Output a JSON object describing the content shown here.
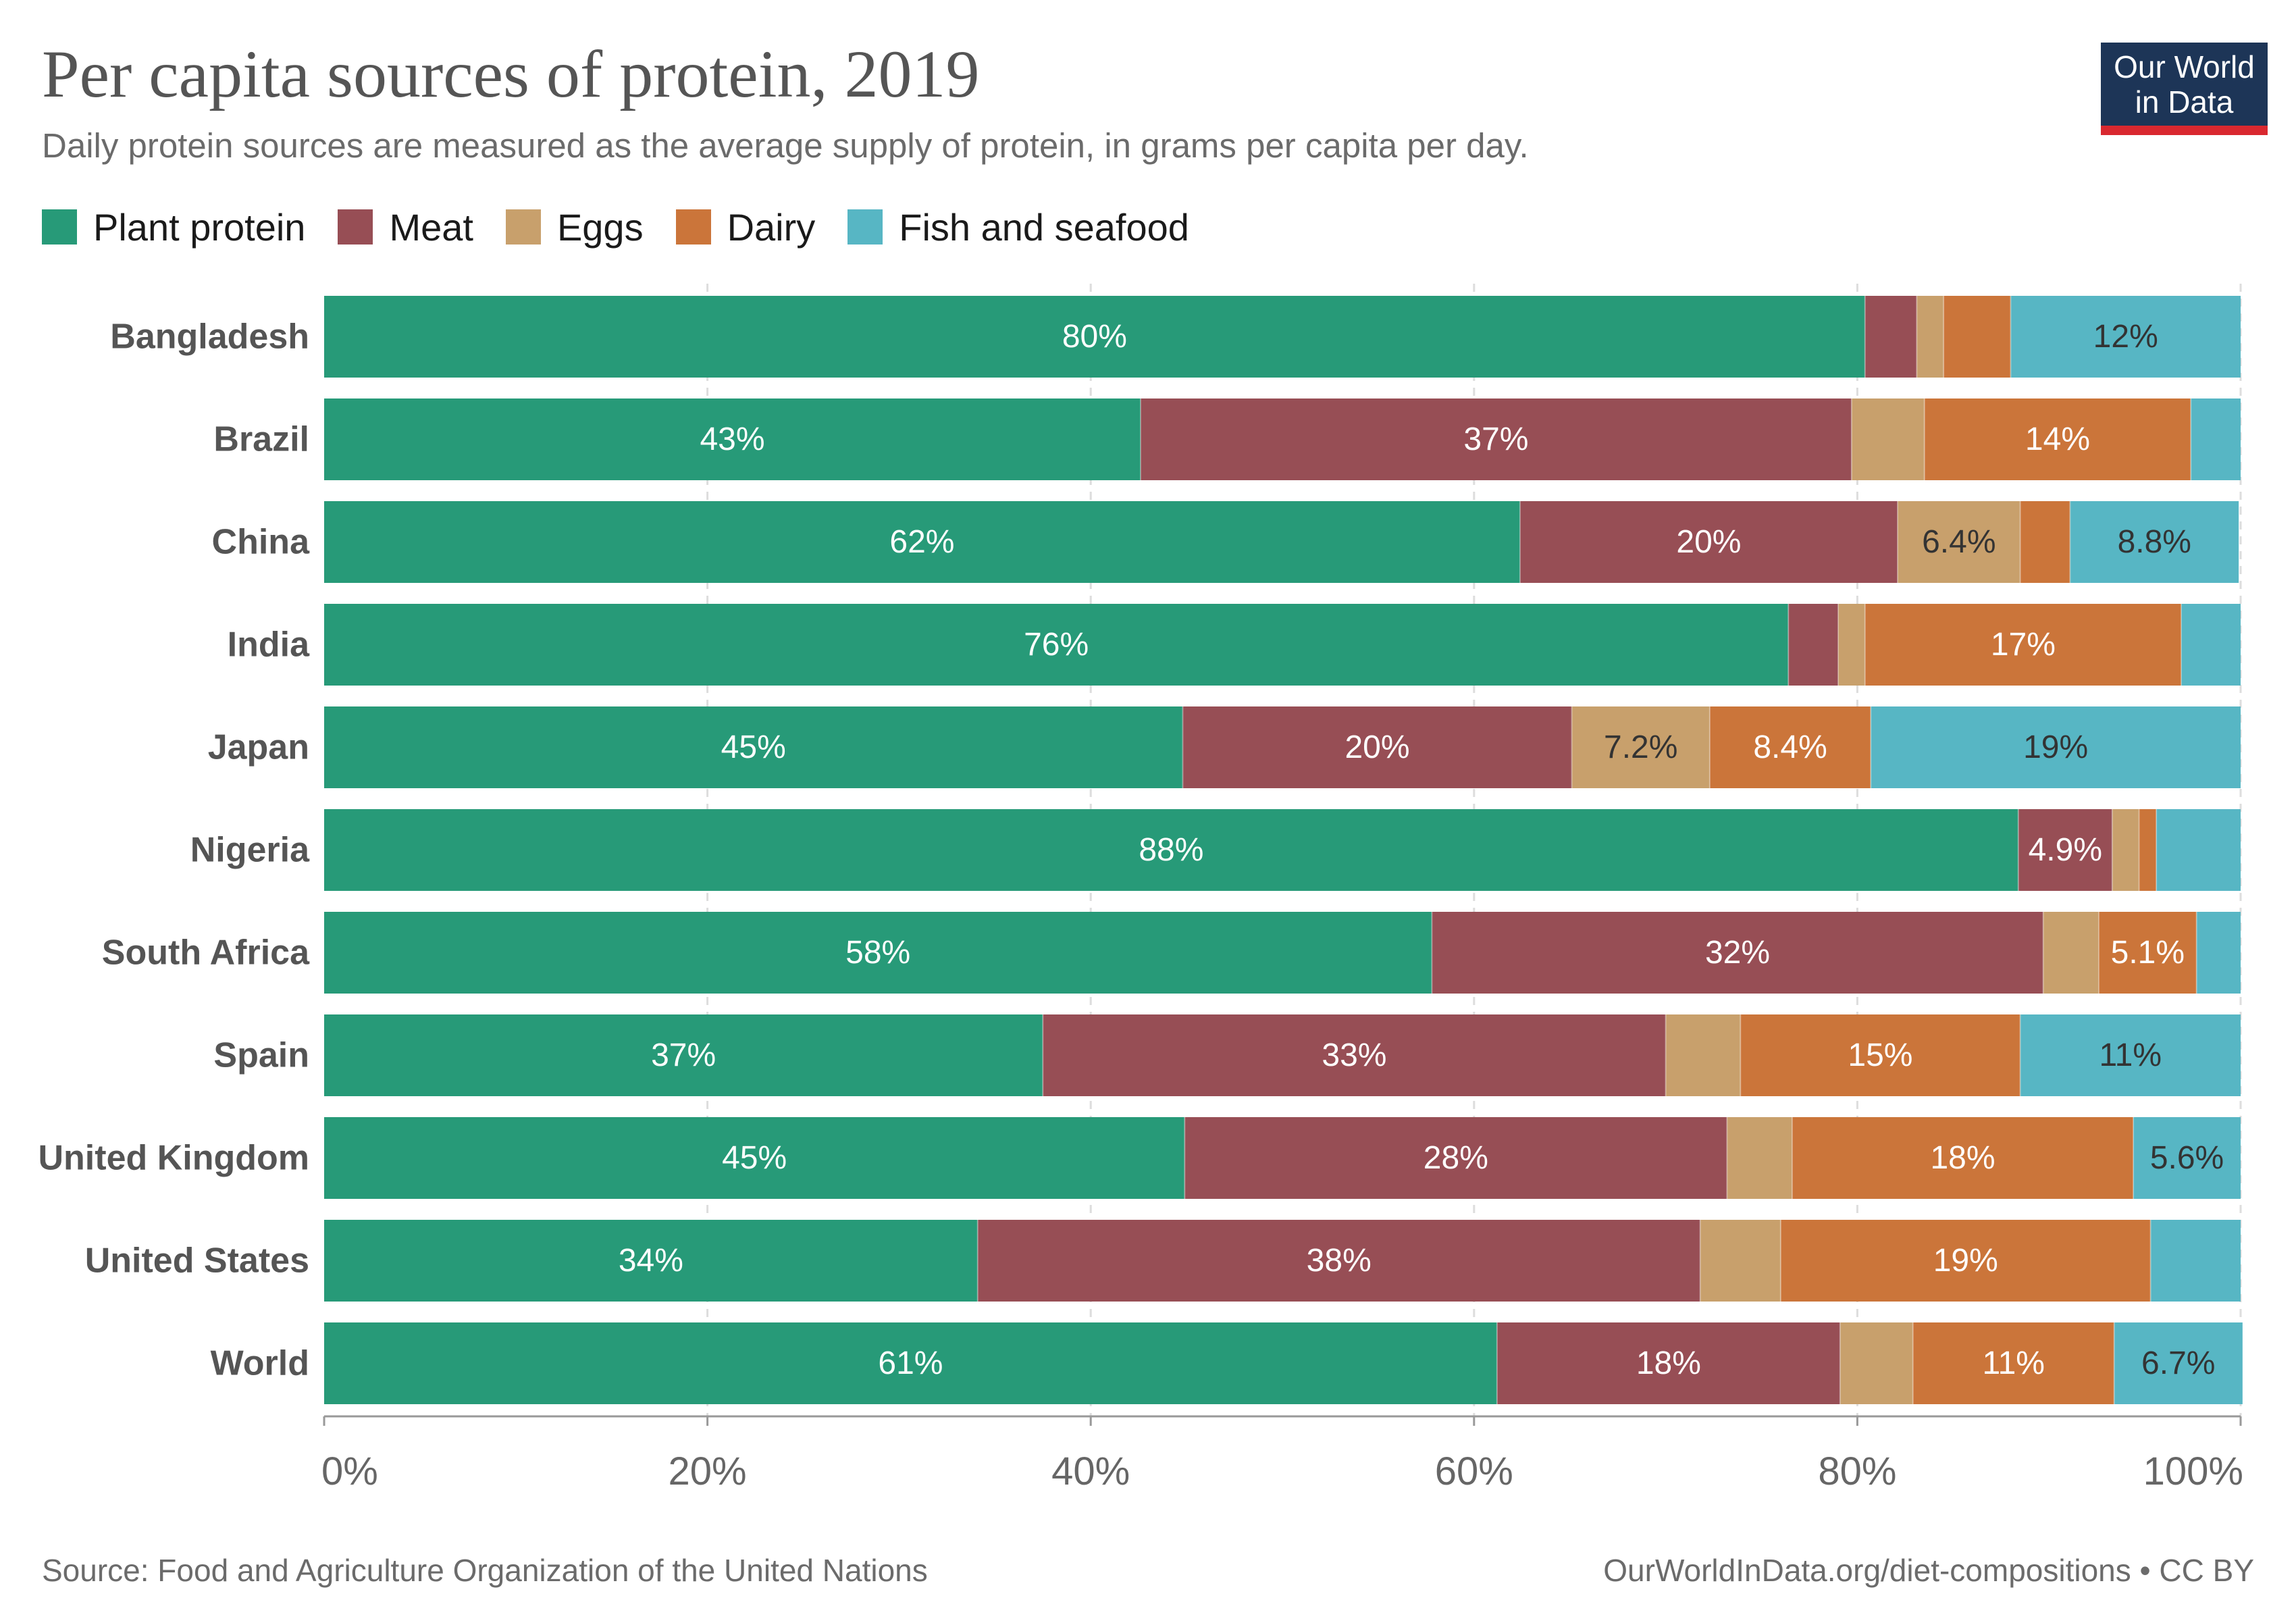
{
  "header": {
    "title": "Per capita sources of protein, 2019",
    "subtitle": "Daily protein sources are measured as the average supply of protein, in grams per capita per day."
  },
  "logo": {
    "line1": "Our World",
    "line2": "in Data"
  },
  "footer": {
    "source": "Source: Food and Agriculture Organization of the United Nations",
    "url": "OurWorldInData.org/diet-compositions • CC BY"
  },
  "chart_data": {
    "type": "bar",
    "orientation": "horizontal",
    "stacked": true,
    "normalized_percent": true,
    "title": "Per capita sources of protein, 2019",
    "subtitle": "Daily protein sources are measured as the average supply of protein, in grams per capita per day.",
    "xlim": [
      0,
      100
    ],
    "x_ticks": [
      "0%",
      "20%",
      "40%",
      "60%",
      "80%",
      "100%"
    ],
    "grid": "vertical dashed",
    "legend_position": "top-left",
    "categories": [
      "Bangladesh",
      "Brazil",
      "China",
      "India",
      "Japan",
      "Nigeria",
      "South Africa",
      "Spain",
      "United Kingdom",
      "United States",
      "World"
    ],
    "series": [
      {
        "name": "Plant protein",
        "color": "#279a78",
        "values": [
          80.4,
          42.6,
          62.4,
          76.4,
          44.8,
          88.4,
          57.8,
          37.5,
          44.9,
          34.1,
          61.2
        ],
        "labels": [
          "80%",
          "43%",
          "62%",
          "76%",
          "45%",
          "88%",
          "58%",
          "37%",
          "45%",
          "34%",
          "61%"
        ]
      },
      {
        "name": "Meat",
        "color": "#974e55",
        "values": [
          2.7,
          37.1,
          19.7,
          2.6,
          20.3,
          4.9,
          31.9,
          32.5,
          28.3,
          37.7,
          17.9
        ],
        "labels": [
          "",
          "37%",
          "20%",
          "",
          "20%",
          "4.9%",
          "32%",
          "33%",
          "28%",
          "38%",
          "18%"
        ]
      },
      {
        "name": "Eggs",
        "color": "#c8a06c",
        "values": [
          1.4,
          3.8,
          6.4,
          1.4,
          7.2,
          1.4,
          2.9,
          3.9,
          3.4,
          4.2,
          3.8
        ],
        "labels": [
          "",
          "",
          "6.4%",
          "",
          "7.2%",
          "",
          "",
          "",
          "",
          "",
          ""
        ]
      },
      {
        "name": "Dairy",
        "color": "#cb753a",
        "values": [
          3.5,
          13.9,
          2.6,
          16.5,
          8.4,
          0.9,
          5.1,
          14.6,
          17.8,
          19.3,
          10.5
        ],
        "labels": [
          "",
          "14%",
          "",
          "17%",
          "8.4%",
          "",
          "5.1%",
          "15%",
          "18%",
          "19%",
          "11%"
        ]
      },
      {
        "name": "Fish and seafood",
        "color": "#57b6c4",
        "values": [
          12.0,
          2.6,
          8.8,
          3.1,
          19.3,
          4.4,
          2.3,
          11.5,
          5.6,
          4.7,
          6.7
        ],
        "labels": [
          "12%",
          "",
          "8.8%",
          "",
          "19%",
          "",
          "",
          "11%",
          "5.6%",
          "",
          "6.7%"
        ]
      }
    ]
  }
}
